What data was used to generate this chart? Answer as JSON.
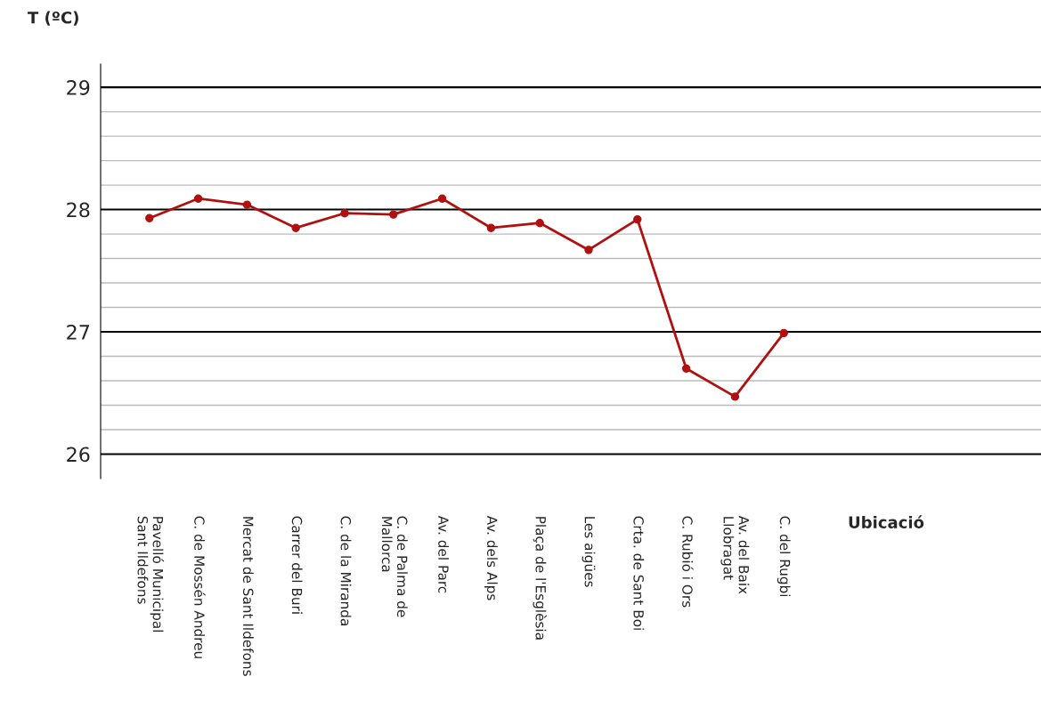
{
  "chart_data": {
    "type": "line",
    "ylabel": "T (ºC)",
    "xlabel": "Ubicació",
    "categories": [
      "Pavelló Municipal\nSant Ildefons",
      "C. de Mossén Andreu",
      "Mercat de Sant Ildefons",
      "Carrer del Buri",
      "C. de la Miranda",
      "C. de Palma de\nMallorca",
      "Av. del Parc",
      "Av. dels Alps",
      "Plaça de l'Esglèsia",
      "Les aigües",
      "Crta. de Sant Boi",
      "C. Rubió i Ors",
      "Av. del Baix\nLlobragat",
      "C. del Rugbi"
    ],
    "series": [
      {
        "color": "#b01010",
        "values": [
          27.93,
          28.09,
          28.04,
          27.85,
          27.97,
          27.96,
          28.09,
          27.85,
          27.89,
          27.67,
          27.92,
          26.7,
          26.47,
          26.99
        ]
      }
    ],
    "ylim": [
      25.8,
      29.19
    ],
    "yticks": [
      26,
      27,
      28,
      29
    ],
    "grid": "y",
    "marker": "circle",
    "line_style": "solid",
    "legend": false
  }
}
